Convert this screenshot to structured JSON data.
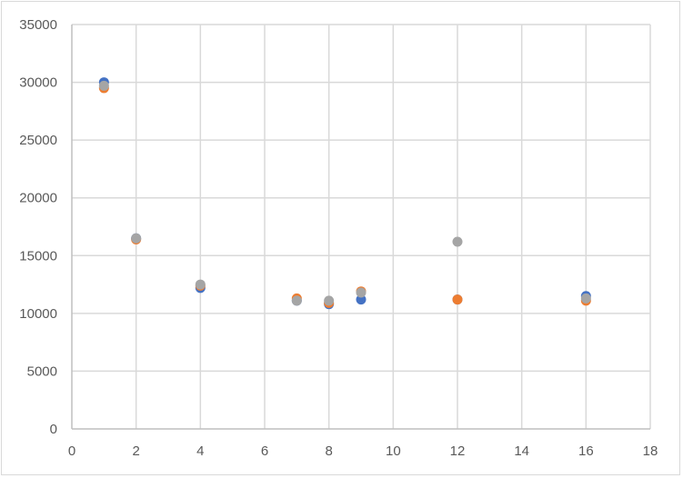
{
  "chart_data": {
    "type": "scatter",
    "title": "",
    "xlabel": "",
    "ylabel": "",
    "xlim": [
      0,
      18
    ],
    "ylim": [
      0,
      35000
    ],
    "x_ticks": [
      0,
      2,
      4,
      6,
      8,
      10,
      12,
      14,
      16,
      18
    ],
    "y_ticks": [
      0,
      5000,
      10000,
      15000,
      20000,
      25000,
      30000,
      35000
    ],
    "grid": true,
    "legend": "none",
    "series": [
      {
        "color": "#4472c4",
        "points": [
          {
            "x": 1,
            "y": 30000
          },
          {
            "x": 2,
            "y": 16500
          },
          {
            "x": 4,
            "y": 12200
          },
          {
            "x": 7,
            "y": 11100
          },
          {
            "x": 8,
            "y": 10800
          },
          {
            "x": 9,
            "y": 11200
          },
          {
            "x": 12,
            "y": 11200
          },
          {
            "x": 16,
            "y": 11500
          }
        ]
      },
      {
        "color": "#ed7d31",
        "points": [
          {
            "x": 1,
            "y": 29500
          },
          {
            "x": 2,
            "y": 16400
          },
          {
            "x": 4,
            "y": 12400
          },
          {
            "x": 7,
            "y": 11300
          },
          {
            "x": 8,
            "y": 10900
          },
          {
            "x": 9,
            "y": 11900
          },
          {
            "x": 12,
            "y": 11200
          },
          {
            "x": 16,
            "y": 11100
          }
        ]
      },
      {
        "color": "#a5a5a5",
        "points": [
          {
            "x": 1,
            "y": 29700
          },
          {
            "x": 2,
            "y": 16500
          },
          {
            "x": 4,
            "y": 12500
          },
          {
            "x": 7,
            "y": 11100
          },
          {
            "x": 8,
            "y": 11100
          },
          {
            "x": 9,
            "y": 11800
          },
          {
            "x": 12,
            "y": 16200
          },
          {
            "x": 16,
            "y": 11300
          }
        ]
      }
    ]
  }
}
